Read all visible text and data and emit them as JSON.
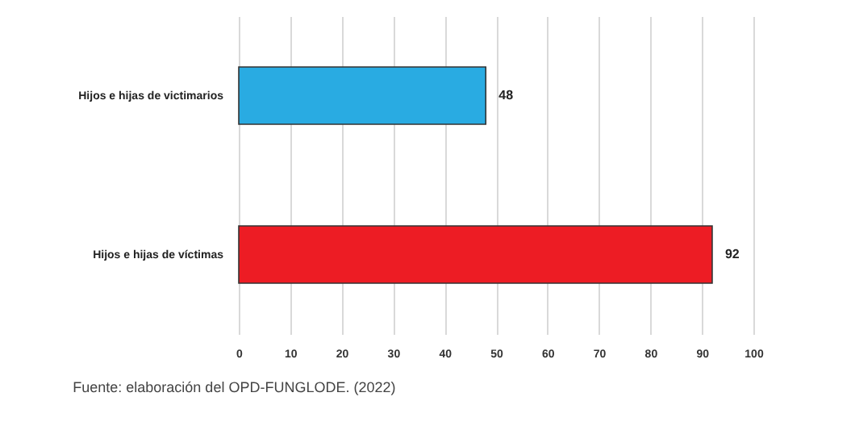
{
  "chart_data": {
    "type": "bar",
    "orientation": "horizontal",
    "categories": [
      "Hijos e hijas de victimarios",
      "Hijos e hijas de víctimas"
    ],
    "values": [
      48,
      92
    ],
    "colors": [
      "#29abe2",
      "#ed1c24"
    ],
    "xlim": [
      0,
      100
    ],
    "xticks": [
      0,
      10,
      20,
      30,
      40,
      50,
      60,
      70,
      80,
      90,
      100
    ],
    "grid": "x",
    "data_labels": true,
    "annotations": [
      "Fuente: elaboración del OPD-FUNGLODE. (2022)"
    ]
  }
}
